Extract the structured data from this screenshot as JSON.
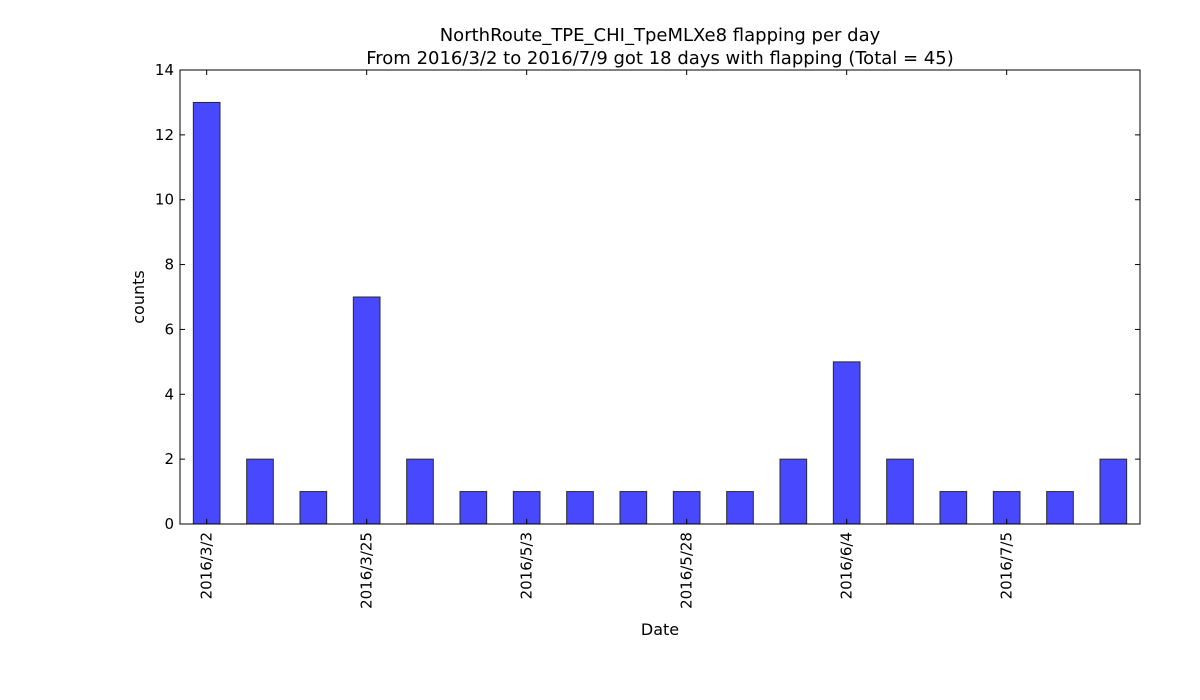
{
  "chart_data": {
    "type": "bar",
    "title": "NorthRoute_TPE_CHI_TpeMLXe8 flapping per day",
    "subtitle": "From 2016/3/2 to 2016/7/9 got 18 days with flapping (Total = 45)",
    "xlabel": "Date",
    "ylabel": "counts",
    "ylim": [
      0,
      14
    ],
    "yticks": [
      0,
      2,
      4,
      6,
      8,
      10,
      12,
      14
    ],
    "categories": [
      "2016/3/2",
      "",
      "",
      "2016/3/25",
      "",
      "",
      "2016/5/3",
      "",
      "",
      "2016/5/28",
      "",
      "",
      "2016/6/4",
      "",
      "",
      "2016/7/5",
      "",
      ""
    ],
    "values": [
      13,
      2,
      1,
      7,
      2,
      1,
      1,
      1,
      1,
      1,
      1,
      2,
      5,
      2,
      1,
      1,
      1,
      2
    ],
    "bar_color": "#4848fe",
    "bar_edge_color": "#2a2a2a",
    "grid": false,
    "legend": "none"
  }
}
